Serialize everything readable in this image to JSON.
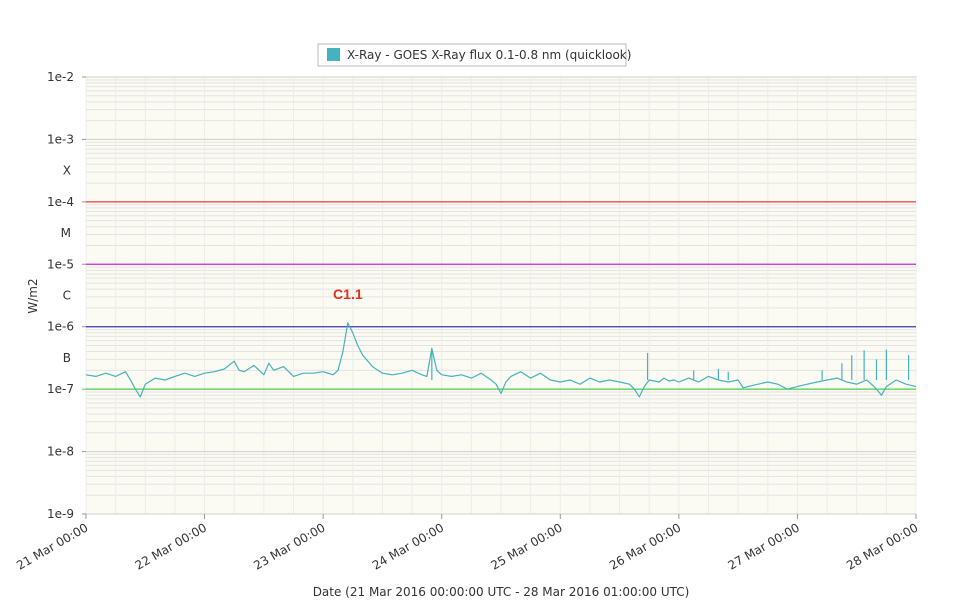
{
  "chart_data": {
    "type": "line",
    "title": "",
    "xlabel": "Date (21 Mar 2016 00:00:00 UTC - 28 Mar 2016 01:00:00 UTC)",
    "ylabel": "W/m2",
    "y_scale": "log",
    "ylim": [
      1e-09,
      0.01
    ],
    "xlim": [
      "2016-03-21T00:00",
      "2016-03-28T00:00"
    ],
    "y_ticks": [
      {
        "value": 0.01,
        "label": "1e-2"
      },
      {
        "value": 0.001,
        "label": "1e-3"
      },
      {
        "value": 0.0001,
        "label": "1e-4"
      },
      {
        "value": 1e-05,
        "label": "1e-5"
      },
      {
        "value": 1e-06,
        "label": "1e-6"
      },
      {
        "value": 1e-07,
        "label": "1e-7"
      },
      {
        "value": 1e-08,
        "label": "1e-8"
      },
      {
        "value": 1e-09,
        "label": "1e-9"
      }
    ],
    "class_labels": [
      {
        "value": 0.000316,
        "label": "X"
      },
      {
        "value": 3.16e-05,
        "label": "M"
      },
      {
        "value": 3.16e-06,
        "label": "C"
      },
      {
        "value": 3.16e-07,
        "label": "B"
      }
    ],
    "x_ticks": [
      {
        "value": "2016-03-21T00:00",
        "label": "21 Mar 00:00"
      },
      {
        "value": "2016-03-22T00:00",
        "label": "22 Mar 00:00"
      },
      {
        "value": "2016-03-23T00:00",
        "label": "23 Mar 00:00"
      },
      {
        "value": "2016-03-24T00:00",
        "label": "24 Mar 00:00"
      },
      {
        "value": "2016-03-25T00:00",
        "label": "25 Mar 00:00"
      },
      {
        "value": "2016-03-26T00:00",
        "label": "26 Mar 00:00"
      },
      {
        "value": "2016-03-27T00:00",
        "label": "27 Mar 00:00"
      },
      {
        "value": "2016-03-28T00:00",
        "label": "28 Mar 00:00"
      }
    ],
    "threshold_lines": [
      {
        "value": 0.0001,
        "color": "#e8413c"
      },
      {
        "value": 1e-05,
        "color": "#d627d6"
      },
      {
        "value": 1e-06,
        "color": "#3b3bb3"
      },
      {
        "value": 1e-07,
        "color": "#4fce4f"
      }
    ],
    "series": [
      {
        "name": "X-Ray - GOES X-Ray flux 0.1-0.8 nm (quicklook)",
        "color": "#45b3bd",
        "points": [
          [
            "2016-03-21T00:00",
            1.7e-07
          ],
          [
            "2016-03-21T02:00",
            1.6e-07
          ],
          [
            "2016-03-21T04:00",
            1.8e-07
          ],
          [
            "2016-03-21T06:00",
            1.6e-07
          ],
          [
            "2016-03-21T08:00",
            1.9e-07
          ],
          [
            "2016-03-21T09:00",
            1.4e-07
          ],
          [
            "2016-03-21T10:00",
            1e-07
          ],
          [
            "2016-03-21T11:00",
            7.5e-08
          ],
          [
            "2016-03-21T12:00",
            1.2e-07
          ],
          [
            "2016-03-21T14:00",
            1.5e-07
          ],
          [
            "2016-03-21T16:00",
            1.4e-07
          ],
          [
            "2016-03-21T18:00",
            1.6e-07
          ],
          [
            "2016-03-21T20:00",
            1.8e-07
          ],
          [
            "2016-03-21T22:00",
            1.6e-07
          ],
          [
            "2016-03-22T00:00",
            1.8e-07
          ],
          [
            "2016-03-22T02:00",
            1.9e-07
          ],
          [
            "2016-03-22T04:00",
            2.1e-07
          ],
          [
            "2016-03-22T06:00",
            2.8e-07
          ],
          [
            "2016-03-22T07:00",
            2e-07
          ],
          [
            "2016-03-22T08:00",
            1.9e-07
          ],
          [
            "2016-03-22T10:00",
            2.4e-07
          ],
          [
            "2016-03-22T12:00",
            1.7e-07
          ],
          [
            "2016-03-22T13:00",
            2.6e-07
          ],
          [
            "2016-03-22T14:00",
            2e-07
          ],
          [
            "2016-03-22T16:00",
            2.3e-07
          ],
          [
            "2016-03-22T18:00",
            1.6e-07
          ],
          [
            "2016-03-22T20:00",
            1.8e-07
          ],
          [
            "2016-03-22T22:00",
            1.8e-07
          ],
          [
            "2016-03-23T00:00",
            1.9e-07
          ],
          [
            "2016-03-23T02:00",
            1.7e-07
          ],
          [
            "2016-03-23T03:00",
            2e-07
          ],
          [
            "2016-03-23T04:00",
            4e-07
          ],
          [
            "2016-03-23T05:00",
            1.15e-06
          ],
          [
            "2016-03-23T06:00",
            8e-07
          ],
          [
            "2016-03-23T07:00",
            5e-07
          ],
          [
            "2016-03-23T08:00",
            3.5e-07
          ],
          [
            "2016-03-23T10:00",
            2.3e-07
          ],
          [
            "2016-03-23T12:00",
            1.8e-07
          ],
          [
            "2016-03-23T14:00",
            1.7e-07
          ],
          [
            "2016-03-23T16:00",
            1.8e-07
          ],
          [
            "2016-03-23T18:00",
            2e-07
          ],
          [
            "2016-03-23T20:00",
            1.7e-07
          ],
          [
            "2016-03-23T21:00",
            1.6e-07
          ],
          [
            "2016-03-23T22:00",
            4.5e-07
          ],
          [
            "2016-03-23T23:00",
            2e-07
          ],
          [
            "2016-03-24T00:00",
            1.7e-07
          ],
          [
            "2016-03-24T02:00",
            1.6e-07
          ],
          [
            "2016-03-24T04:00",
            1.7e-07
          ],
          [
            "2016-03-24T06:00",
            1.5e-07
          ],
          [
            "2016-03-24T08:00",
            1.8e-07
          ],
          [
            "2016-03-24T10:00",
            1.4e-07
          ],
          [
            "2016-03-24T11:00",
            1.2e-07
          ],
          [
            "2016-03-24T12:00",
            8.5e-08
          ],
          [
            "2016-03-24T13:00",
            1.3e-07
          ],
          [
            "2016-03-24T14:00",
            1.6e-07
          ],
          [
            "2016-03-24T16:00",
            1.9e-07
          ],
          [
            "2016-03-24T18:00",
            1.5e-07
          ],
          [
            "2016-03-24T20:00",
            1.8e-07
          ],
          [
            "2016-03-24T22:00",
            1.4e-07
          ],
          [
            "2016-03-25T00:00",
            1.3e-07
          ],
          [
            "2016-03-25T02:00",
            1.4e-07
          ],
          [
            "2016-03-25T04:00",
            1.2e-07
          ],
          [
            "2016-03-25T06:00",
            1.5e-07
          ],
          [
            "2016-03-25T08:00",
            1.3e-07
          ],
          [
            "2016-03-25T10:00",
            1.4e-07
          ],
          [
            "2016-03-25T12:00",
            1.3e-07
          ],
          [
            "2016-03-25T14:00",
            1.2e-07
          ],
          [
            "2016-03-25T15:00",
            1e-07
          ],
          [
            "2016-03-25T16:00",
            7.5e-08
          ],
          [
            "2016-03-25T17:00",
            1.1e-07
          ],
          [
            "2016-03-25T18:00",
            1.4e-07
          ],
          [
            "2016-03-25T20:00",
            1.3e-07
          ],
          [
            "2016-03-25T21:00",
            1.5e-07
          ],
          [
            "2016-03-25T22:00",
            1.35e-07
          ],
          [
            "2016-03-25T23:00",
            1.4e-07
          ],
          [
            "2016-03-26T00:00",
            1.3e-07
          ],
          [
            "2016-03-26T02:00",
            1.5e-07
          ],
          [
            "2016-03-26T04:00",
            1.3e-07
          ],
          [
            "2016-03-26T06:00",
            1.6e-07
          ],
          [
            "2016-03-26T08:00",
            1.4e-07
          ],
          [
            "2016-03-26T10:00",
            1.3e-07
          ],
          [
            "2016-03-26T12:00",
            1.4e-07
          ],
          [
            "2016-03-26T13:00",
            1.05e-07
          ],
          [
            "2016-03-26T14:00",
            1.1e-07
          ],
          [
            "2016-03-26T16:00",
            1.2e-07
          ],
          [
            "2016-03-26T18:00",
            1.3e-07
          ],
          [
            "2016-03-26T20:00",
            1.2e-07
          ],
          [
            "2016-03-26T22:00",
            1e-07
          ],
          [
            "2016-03-27T00:00",
            1.1e-07
          ],
          [
            "2016-03-27T02:00",
            1.2e-07
          ],
          [
            "2016-03-27T04:00",
            1.3e-07
          ],
          [
            "2016-03-27T06:00",
            1.4e-07
          ],
          [
            "2016-03-27T08:00",
            1.5e-07
          ],
          [
            "2016-03-27T10:00",
            1.3e-07
          ],
          [
            "2016-03-27T12:00",
            1.2e-07
          ],
          [
            "2016-03-27T14:00",
            1.4e-07
          ],
          [
            "2016-03-27T15:00",
            1.2e-07
          ],
          [
            "2016-03-27T16:00",
            1e-07
          ],
          [
            "2016-03-27T17:00",
            8e-08
          ],
          [
            "2016-03-27T18:00",
            1.1e-07
          ],
          [
            "2016-03-27T20:00",
            1.4e-07
          ],
          [
            "2016-03-27T22:00",
            1.2e-07
          ],
          [
            "2016-03-28T00:00",
            1.1e-07
          ]
        ]
      }
    ],
    "spikes": [
      [
        "2016-03-23T22:00",
        4.5e-07
      ],
      [
        "2016-03-25T17:40",
        3.8e-07
      ],
      [
        "2016-03-26T03:00",
        2e-07
      ],
      [
        "2016-03-26T08:00",
        2.1e-07
      ],
      [
        "2016-03-26T10:00",
        1.9e-07
      ],
      [
        "2016-03-27T05:00",
        2e-07
      ],
      [
        "2016-03-27T09:00",
        2.6e-07
      ],
      [
        "2016-03-27T11:00",
        3.5e-07
      ],
      [
        "2016-03-27T13:30",
        4.2e-07
      ],
      [
        "2016-03-27T16:00",
        3e-07
      ],
      [
        "2016-03-27T18:00",
        4.3e-07
      ],
      [
        "2016-03-27T22:30",
        3.5e-07
      ]
    ],
    "annotations": [
      {
        "text": "C1.1",
        "x": "2016-03-23T05:00",
        "y": 1.15e-06,
        "color": "#e2301d"
      }
    ],
    "legend_position": "top-center",
    "grid": true,
    "plot_background": "#fbfaf3"
  }
}
